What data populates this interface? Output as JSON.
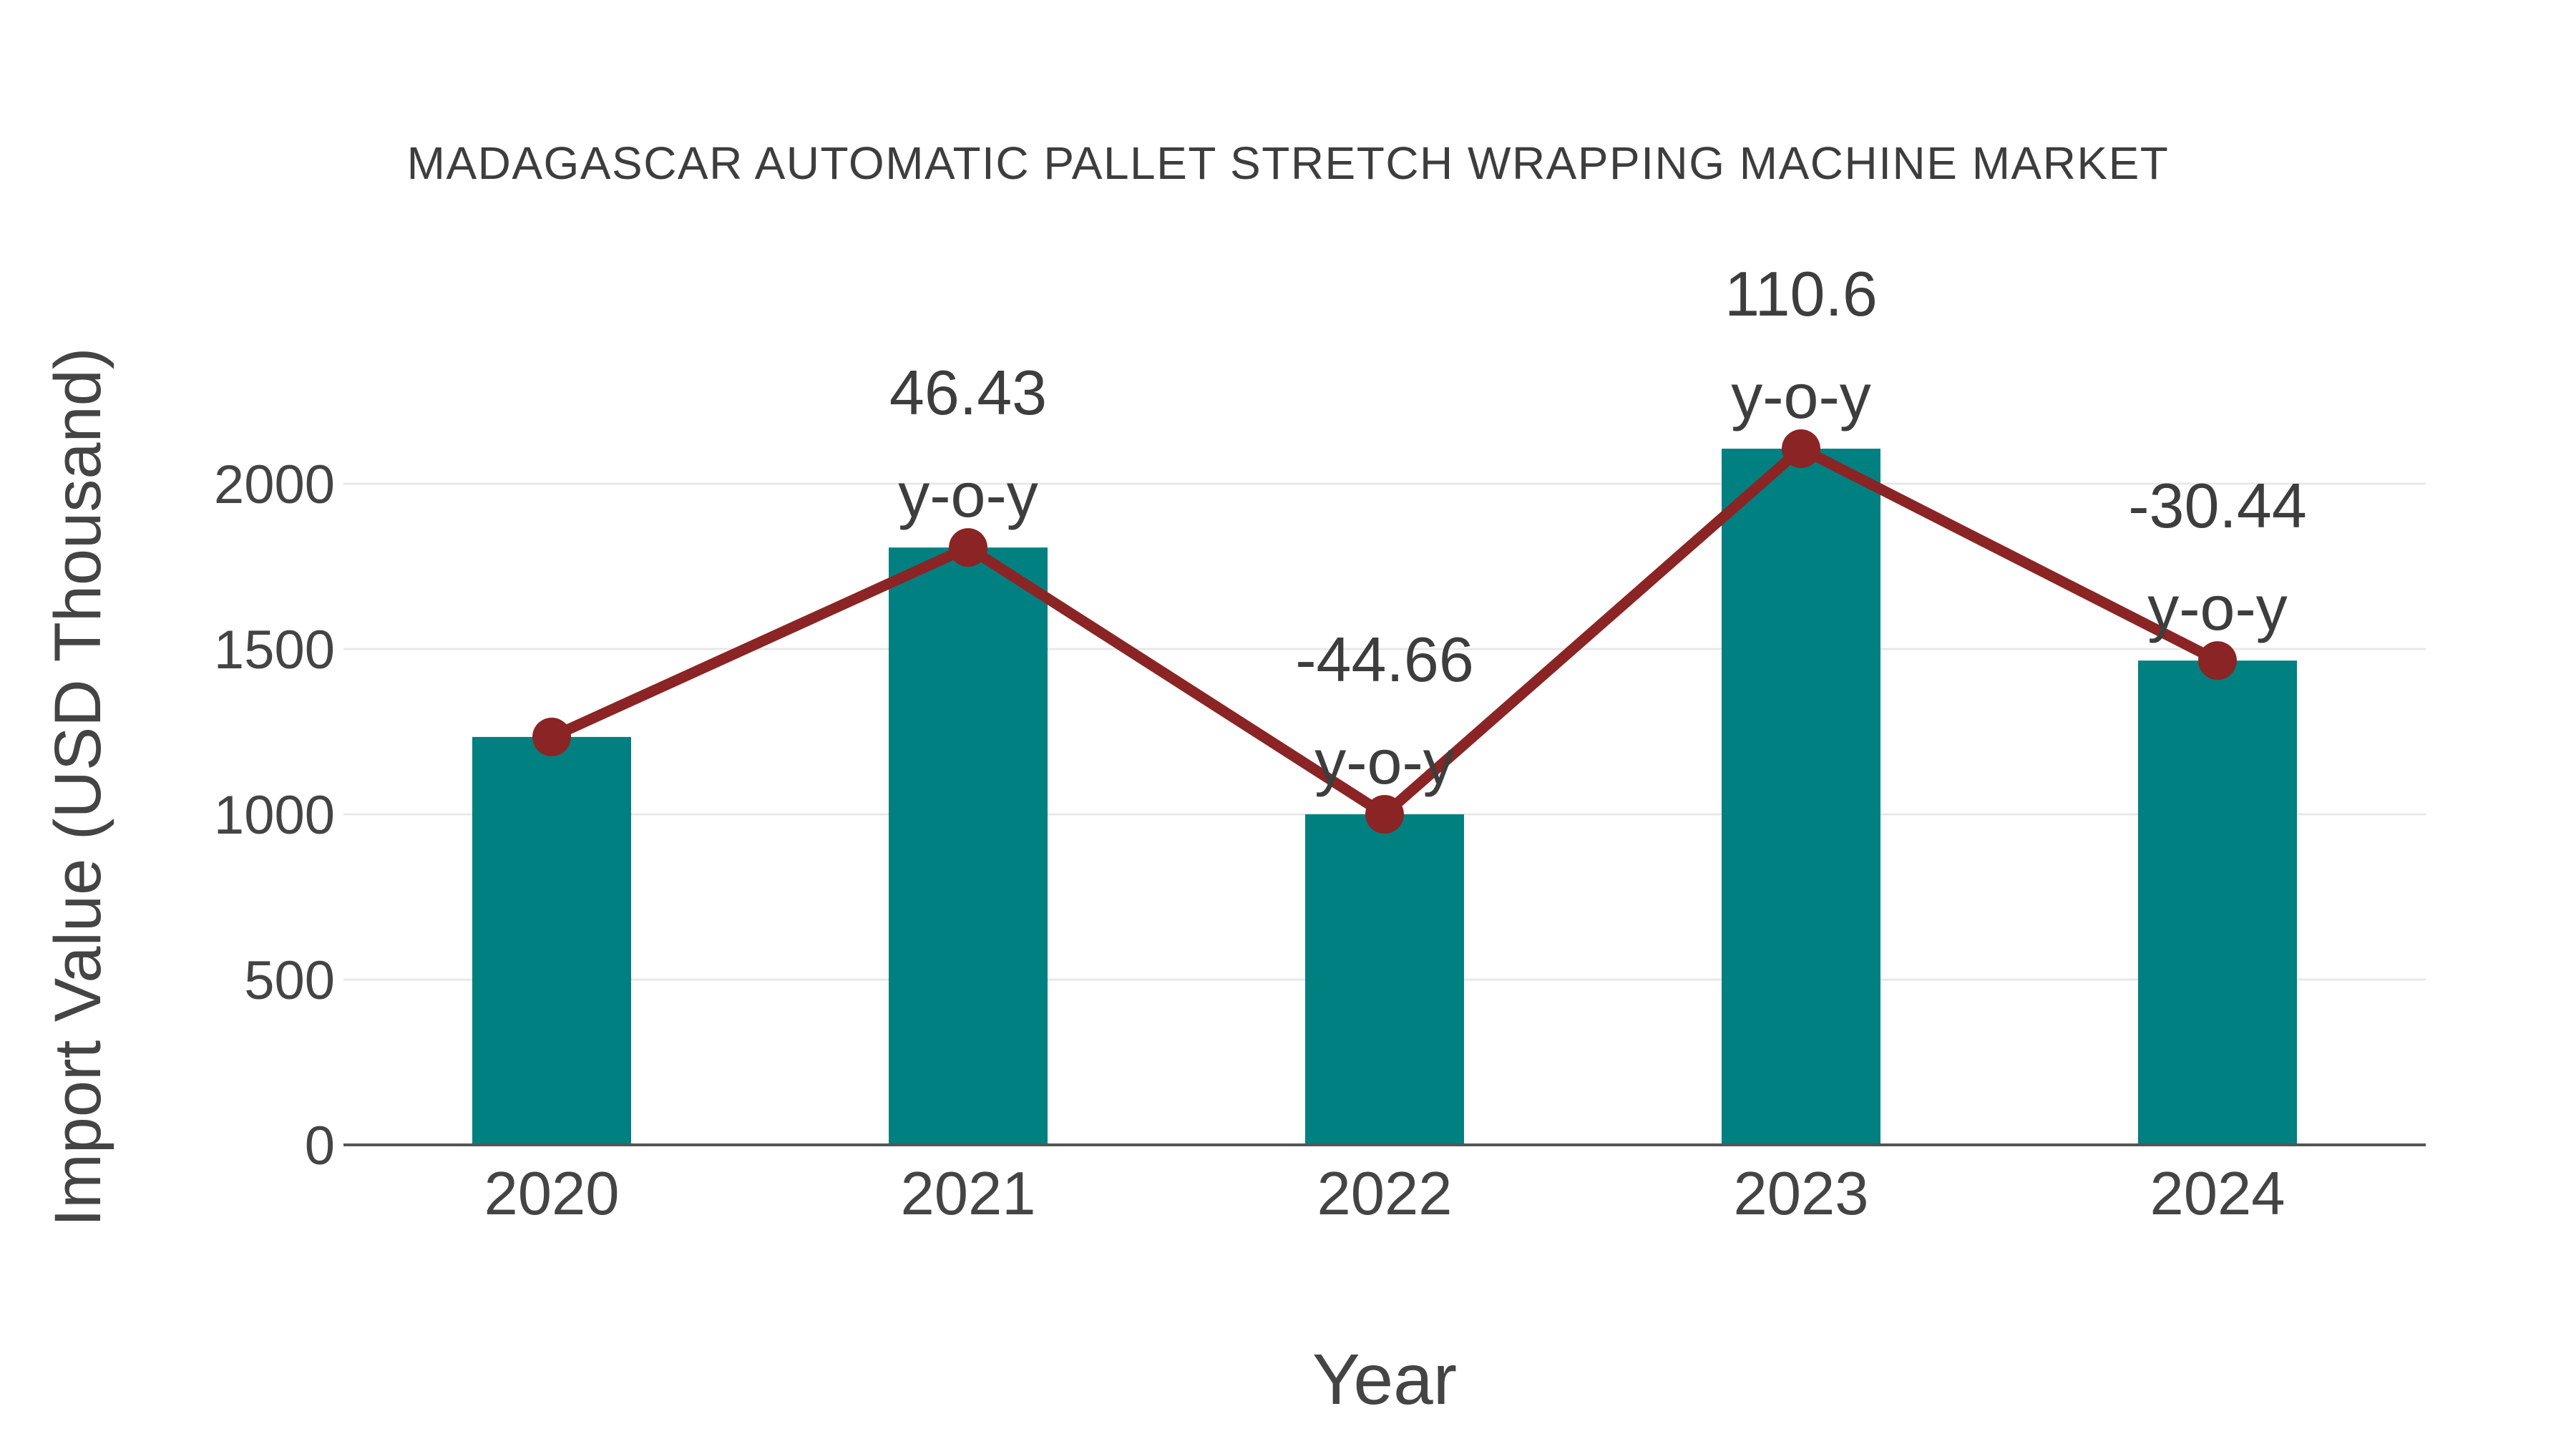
{
  "chart_data": {
    "type": "bar",
    "title": "MADAGASCAR AUTOMATIC PALLET STRETCH WRAPPING MACHINE MARKET",
    "xlabel": "Year",
    "ylabel": "Import Value (USD Thousand)",
    "categories": [
      "2020",
      "2021",
      "2022",
      "2023",
      "2024"
    ],
    "series": [
      {
        "name": "Import Value (USD Thousand)",
        "type": "bar",
        "values": [
          1234,
          1807,
          1000,
          2106,
          1465
        ],
        "color": "#008080"
      },
      {
        "name": "y-o-y change",
        "type": "line",
        "values": [
          1234,
          1807,
          1000,
          2106,
          1465
        ],
        "color": "#8b2424"
      }
    ],
    "annotations": [
      {
        "category": "2021",
        "value": "46.43",
        "label": "y-o-y"
      },
      {
        "category": "2022",
        "value": "-44.66",
        "label": "y-o-y"
      },
      {
        "category": "2023",
        "value": "110.6",
        "label": "y-o-y"
      },
      {
        "category": "2024",
        "value": "-30.44",
        "label": "y-o-y"
      }
    ],
    "yticks": [
      0,
      500,
      1000,
      1500,
      2000
    ],
    "ylim": [
      0,
      2400
    ],
    "grid": true,
    "legend": "none",
    "colors": {
      "bar": "#008080",
      "line": "#8b2424",
      "grid": "#e8e8e8",
      "axis_line": "#555555",
      "annotation_text": "#3d3d3d",
      "tick_text": "#444444",
      "background": "#ffffff"
    }
  }
}
